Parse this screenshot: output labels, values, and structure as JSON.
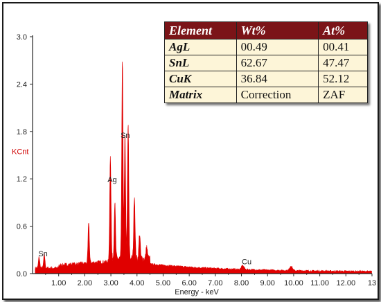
{
  "chart_data": {
    "type": "area",
    "title": "",
    "xlabel": "Energy - keV",
    "ylabel": "KCnt",
    "xlim": [
      0,
      13
    ],
    "ylim": [
      0,
      3.0
    ],
    "x_ticks": [
      "1.00",
      "2.00",
      "3.00",
      "4.00",
      "5.00",
      "6.00",
      "7.00",
      "8.00",
      "9.00",
      "10.00",
      "11.00",
      "12.00",
      "13"
    ],
    "y_ticks": [
      "0.0",
      "0.6",
      "1.2",
      "1.8",
      "2.4",
      "3.0"
    ],
    "peaks": [
      {
        "x": 0.25,
        "y": 0.14
      },
      {
        "x": 0.45,
        "y": 0.18
      },
      {
        "x": 2.15,
        "y": 0.52
      },
      {
        "x": 2.98,
        "y": 1.35
      },
      {
        "x": 3.15,
        "y": 0.72
      },
      {
        "x": 3.44,
        "y": 2.48
      },
      {
        "x": 3.54,
        "y": 1.55
      },
      {
        "x": 3.66,
        "y": 1.72
      },
      {
        "x": 3.9,
        "y": 0.82
      },
      {
        "x": 4.1,
        "y": 0.32
      },
      {
        "x": 4.37,
        "y": 0.15
      },
      {
        "x": 8.05,
        "y": 0.05
      },
      {
        "x": 9.9,
        "y": 0.06
      }
    ],
    "annotations": [
      {
        "text": "Sn",
        "x": 0.4,
        "y": 0.22
      },
      {
        "text": "Ag",
        "x": 3.05,
        "y": 1.16
      },
      {
        "text": "Sn",
        "x": 3.55,
        "y": 1.72
      },
      {
        "text": "Cu",
        "x": 8.2,
        "y": 0.12
      }
    ],
    "color": "#e00000"
  },
  "table": {
    "headers": [
      "Element",
      "Wt%",
      "At%"
    ],
    "rows": [
      [
        "AgL",
        "00.49",
        "00.41"
      ],
      [
        "SnL",
        "62.67",
        "47.47"
      ],
      [
        "CuK",
        "36.84",
        "52.12"
      ],
      [
        "Matrix",
        "Correction",
        "ZAF"
      ]
    ]
  }
}
